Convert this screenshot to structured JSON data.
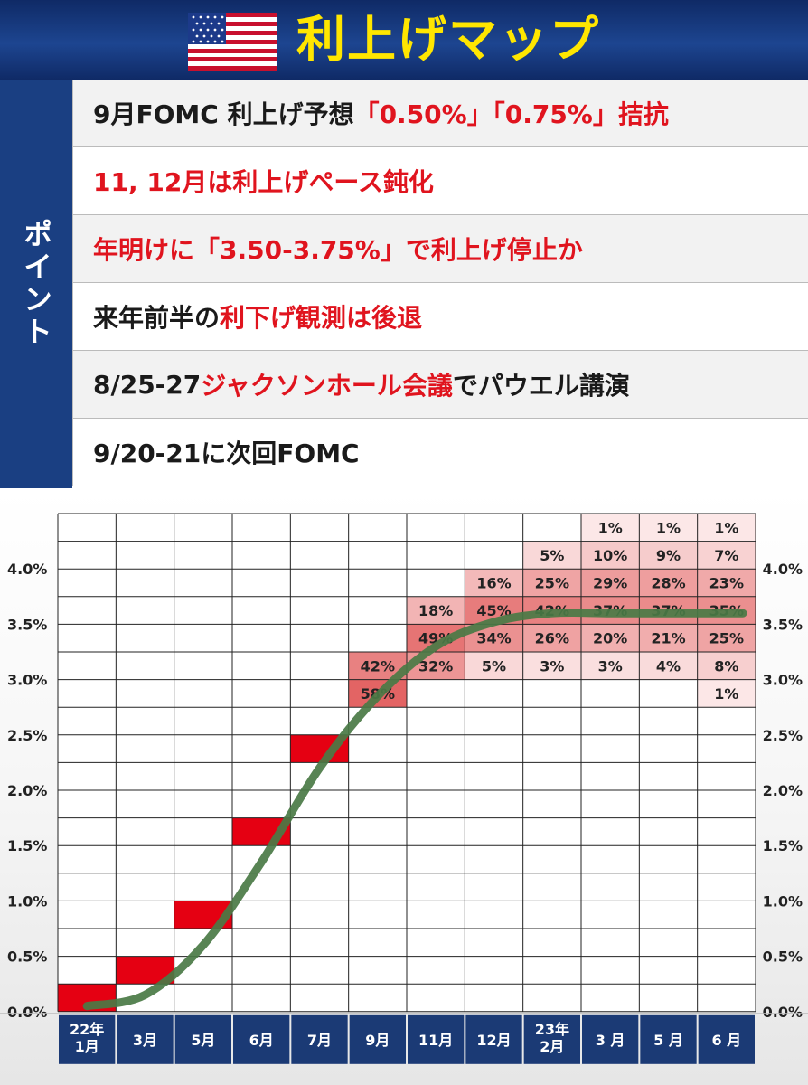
{
  "header": {
    "title": "利上げマップ",
    "flag_icon": "us-flag-icon"
  },
  "points": {
    "label": "ポイント",
    "rows": [
      [
        {
          "t": "9月FOMC 利上げ予想",
          "c": "k"
        },
        {
          "t": "「0.50%」「0.75%」",
          "c": "r"
        },
        {
          "t": "拮抗",
          "c": "r"
        }
      ],
      [
        {
          "t": "11, 12月は利上げペース鈍化",
          "c": "r"
        }
      ],
      [
        {
          "t": "年明けに「3.50-3.75%」で利上げ停止か",
          "c": "r"
        }
      ],
      [
        {
          "t": "来年前半の",
          "c": "k"
        },
        {
          "t": "利下げ観測は後退",
          "c": "r"
        }
      ],
      [
        {
          "t": "8/25-27 ",
          "c": "k"
        },
        {
          "t": "ジャクソンホール会議",
          "c": "r"
        },
        {
          "t": "でパウエル講演",
          "c": "k"
        }
      ],
      [
        {
          "t": "9/20-21に次回FOMC",
          "c": "k"
        }
      ]
    ]
  },
  "colors": {
    "header_bg": "#1d4590",
    "title": "#ffe600",
    "accent_red": "#e0141e",
    "label_bg": "#1a3f82",
    "x_axis_bg": "#1b3a75",
    "curve": "#4a7a45"
  },
  "chart_data": {
    "type": "heatmap",
    "columns": [
      "22年\n1月",
      "3月",
      "5月",
      "6月",
      "7月",
      "9月",
      "11月",
      "12月",
      "23年\n2月",
      "3 月",
      "5 月",
      "6 月"
    ],
    "y_tick_labels": [
      "0.0%",
      "0.5%",
      "1.0%",
      "1.5%",
      "2.0%",
      "2.5%",
      "3.0%",
      "3.5%",
      "4.0%"
    ],
    "ylim": [
      0.0,
      4.5
    ],
    "rate_bucket_step": 0.25,
    "rows_top_to_bottom": [
      4.25,
      4.0,
      3.75,
      3.5,
      3.25,
      3.0,
      2.75,
      2.5,
      2.25,
      2.0,
      1.75,
      1.5,
      1.25,
      1.0,
      0.75,
      0.5,
      0.25,
      0.0
    ],
    "cells": [
      {
        "col": 0,
        "rate": 0.0,
        "prob": 100,
        "label": ""
      },
      {
        "col": 1,
        "rate": 0.25,
        "prob": 100,
        "label": ""
      },
      {
        "col": 2,
        "rate": 0.75,
        "prob": 100,
        "label": ""
      },
      {
        "col": 3,
        "rate": 1.5,
        "prob": 100,
        "label": ""
      },
      {
        "col": 4,
        "rate": 2.25,
        "prob": 100,
        "label": ""
      },
      {
        "col": 5,
        "rate": 3.0,
        "prob": 42,
        "label": "42%"
      },
      {
        "col": 5,
        "rate": 2.75,
        "prob": 58,
        "label": "58%"
      },
      {
        "col": 6,
        "rate": 3.5,
        "prob": 18,
        "label": "18%"
      },
      {
        "col": 6,
        "rate": 3.25,
        "prob": 49,
        "label": "49%"
      },
      {
        "col": 6,
        "rate": 3.0,
        "prob": 32,
        "label": "32%"
      },
      {
        "col": 7,
        "rate": 3.75,
        "prob": 16,
        "label": "16%"
      },
      {
        "col": 7,
        "rate": 3.5,
        "prob": 45,
        "label": "45%"
      },
      {
        "col": 7,
        "rate": 3.25,
        "prob": 34,
        "label": "34%"
      },
      {
        "col": 7,
        "rate": 3.0,
        "prob": 5,
        "label": "5%"
      },
      {
        "col": 8,
        "rate": 4.0,
        "prob": 5,
        "label": "5%"
      },
      {
        "col": 8,
        "rate": 3.75,
        "prob": 25,
        "label": "25%"
      },
      {
        "col": 8,
        "rate": 3.5,
        "prob": 42,
        "label": "42%"
      },
      {
        "col": 8,
        "rate": 3.25,
        "prob": 26,
        "label": "26%"
      },
      {
        "col": 8,
        "rate": 3.0,
        "prob": 3,
        "label": "3%"
      },
      {
        "col": 9,
        "rate": 4.25,
        "prob": 1,
        "label": "1%"
      },
      {
        "col": 9,
        "rate": 4.0,
        "prob": 10,
        "label": "10%"
      },
      {
        "col": 9,
        "rate": 3.75,
        "prob": 29,
        "label": "29%"
      },
      {
        "col": 9,
        "rate": 3.5,
        "prob": 37,
        "label": "37%"
      },
      {
        "col": 9,
        "rate": 3.25,
        "prob": 20,
        "label": "20%"
      },
      {
        "col": 9,
        "rate": 3.0,
        "prob": 3,
        "label": "3%"
      },
      {
        "col": 10,
        "rate": 4.25,
        "prob": 1,
        "label": "1%"
      },
      {
        "col": 10,
        "rate": 4.0,
        "prob": 9,
        "label": "9%"
      },
      {
        "col": 10,
        "rate": 3.75,
        "prob": 28,
        "label": "28%"
      },
      {
        "col": 10,
        "rate": 3.5,
        "prob": 37,
        "label": "37%"
      },
      {
        "col": 10,
        "rate": 3.25,
        "prob": 21,
        "label": "21%"
      },
      {
        "col": 10,
        "rate": 3.0,
        "prob": 4,
        "label": "4%"
      },
      {
        "col": 11,
        "rate": 4.25,
        "prob": 1,
        "label": "1%"
      },
      {
        "col": 11,
        "rate": 4.0,
        "prob": 7,
        "label": "7%"
      },
      {
        "col": 11,
        "rate": 3.75,
        "prob": 23,
        "label": "23%"
      },
      {
        "col": 11,
        "rate": 3.5,
        "prob": 35,
        "label": "35%"
      },
      {
        "col": 11,
        "rate": 3.25,
        "prob": 25,
        "label": "25%"
      },
      {
        "col": 11,
        "rate": 3.0,
        "prob": 8,
        "label": "8%"
      },
      {
        "col": 11,
        "rate": 2.75,
        "prob": 1,
        "label": "1%"
      }
    ],
    "trend_curve": {
      "x_col": [
        0,
        1,
        2,
        3,
        4,
        5,
        6,
        7,
        8,
        9,
        10,
        11
      ],
      "rate": [
        0.05,
        0.15,
        0.6,
        1.35,
        2.2,
        2.85,
        3.3,
        3.52,
        3.6,
        3.6,
        3.6,
        3.6
      ]
    },
    "grid": true
  }
}
